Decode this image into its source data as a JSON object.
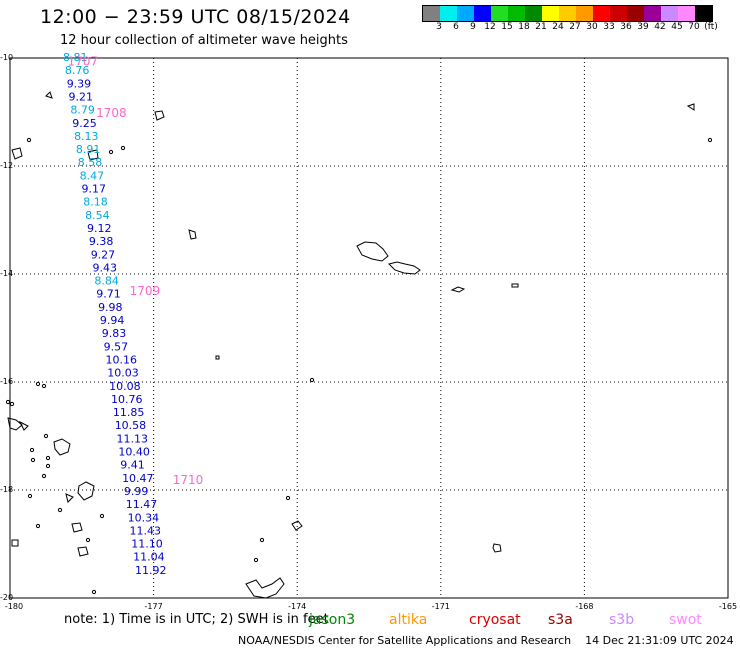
{
  "title": "12:00 − 23:59 UTC 08/15/2024",
  "subtitle": "12 hour collection of altimeter wave heights",
  "colorbar": {
    "colors": [
      "#808080",
      "#00eeee",
      "#00aaff",
      "#0000ff",
      "#22dd22",
      "#00bb00",
      "#008800",
      "#ffff00",
      "#ffcc00",
      "#ff9900",
      "#ff0000",
      "#cc0000",
      "#990000",
      "#990099",
      "#cc88ff",
      "#ff88ff",
      "#000000"
    ],
    "labels": [
      "3",
      "6",
      "9",
      "12",
      "15",
      "18",
      "21",
      "24",
      "27",
      "30",
      "33",
      "36",
      "39",
      "42",
      "45",
      "70",
      "(ft)"
    ]
  },
  "map": {
    "lat_range": [
      -20,
      -10
    ],
    "lon_range": [
      -180,
      -165
    ],
    "lat_labels": [
      "-10",
      "-12",
      "-14",
      "-16",
      "-18",
      "-20"
    ],
    "lon_labels": [
      "-180",
      "-177",
      "-174",
      "-171",
      "-168",
      "-165"
    ]
  },
  "swh_values": [
    {
      "v": "8.81",
      "c": "#00aadd"
    },
    {
      "v": "8.76",
      "c": "#00aadd"
    },
    {
      "v": "9.39",
      "c": "#0000cc"
    },
    {
      "v": "9.21",
      "c": "#0000cc"
    },
    {
      "v": "8.79",
      "c": "#00aadd"
    },
    {
      "v": "9.25",
      "c": "#0000cc"
    },
    {
      "v": "8.13",
      "c": "#00aadd"
    },
    {
      "v": "8.91",
      "c": "#00aadd"
    },
    {
      "v": "8.58",
      "c": "#00aadd"
    },
    {
      "v": "8.47",
      "c": "#00aadd"
    },
    {
      "v": "9.17",
      "c": "#0000cc"
    },
    {
      "v": "8.18",
      "c": "#00aadd"
    },
    {
      "v": "8.54",
      "c": "#00aadd"
    },
    {
      "v": "9.12",
      "c": "#0000cc"
    },
    {
      "v": "9.38",
      "c": "#0000cc"
    },
    {
      "v": "9.27",
      "c": "#0000cc"
    },
    {
      "v": "9.43",
      "c": "#0000cc"
    },
    {
      "v": "8.84",
      "c": "#00aadd"
    },
    {
      "v": "9.71",
      "c": "#0000cc"
    },
    {
      "v": "9.98",
      "c": "#0000cc"
    },
    {
      "v": "9.94",
      "c": "#0000cc"
    },
    {
      "v": "9.83",
      "c": "#0000cc"
    },
    {
      "v": "9.57",
      "c": "#0000cc"
    },
    {
      "v": "10.16",
      "c": "#0000cc"
    },
    {
      "v": "10.03",
      "c": "#0000cc"
    },
    {
      "v": "10.08",
      "c": "#0000cc"
    },
    {
      "v": "10.76",
      "c": "#0000cc"
    },
    {
      "v": "11.85",
      "c": "#0000cc"
    },
    {
      "v": "10.58",
      "c": "#0000cc"
    },
    {
      "v": "11.13",
      "c": "#0000cc"
    },
    {
      "v": "10.40",
      "c": "#0000cc"
    },
    {
      "v": "9.41",
      "c": "#0000cc"
    },
    {
      "v": "10.47",
      "c": "#0000cc"
    },
    {
      "v": "9.99",
      "c": "#0000cc"
    },
    {
      "v": "11.47",
      "c": "#0000cc"
    },
    {
      "v": "10.34",
      "c": "#0000cc"
    },
    {
      "v": "11.43",
      "c": "#0000cc"
    },
    {
      "v": "11.10",
      "c": "#0000cc"
    },
    {
      "v": "11.04",
      "c": "#0000cc"
    },
    {
      "v": "11.92",
      "c": "#0000cc"
    }
  ],
  "pass_labels": [
    {
      "t": "1707",
      "lat": -10.05,
      "lon": -178.8
    },
    {
      "t": "1708",
      "lat": -11.0,
      "lon": -178.2
    },
    {
      "t": "1709",
      "lat": -14.3,
      "lon": -177.5
    },
    {
      "t": "1710",
      "lat": -17.8,
      "lon": -176.6
    }
  ],
  "pass_color": "#ff66cc",
  "note": "note:  1) Time is in UTC;  2) SWH is in feet",
  "legend": [
    {
      "name": "jason3",
      "color": "#008800"
    },
    {
      "name": "altika",
      "color": "#ff9900"
    },
    {
      "name": "cryosat",
      "color": "#dd0000"
    },
    {
      "name": "s3a",
      "color": "#990000"
    },
    {
      "name": "s3b",
      "color": "#cc88ff"
    },
    {
      "name": "swot",
      "color": "#ff88ff"
    }
  ],
  "footer": {
    "org": "NOAA/NESDIS Center for Satellite Applications and Research",
    "timestamp": "14 Dec 21:31:09 UTC 2024"
  }
}
